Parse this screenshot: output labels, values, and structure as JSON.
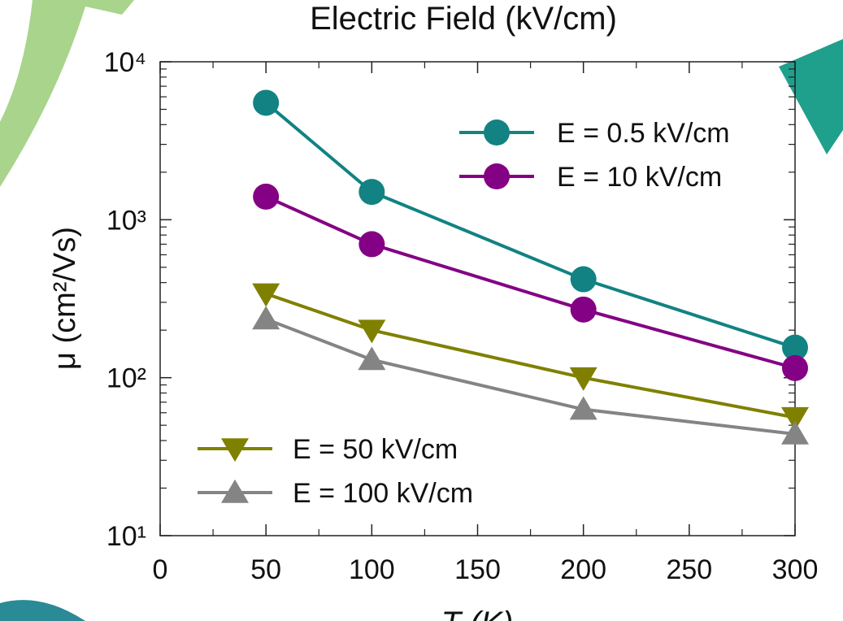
{
  "chart_data": {
    "type": "line",
    "title": "Electric Field (kV/cm)",
    "x_label": "T (K)",
    "y_label": "μ (cm²/Vs)",
    "y_scale": "log",
    "xlim": [
      0,
      300
    ],
    "xticks": [
      0,
      50,
      100,
      150,
      200,
      250,
      300
    ],
    "ylim": [
      10,
      10000
    ],
    "yticks": [
      {
        "value": 10,
        "label": "10¹"
      },
      {
        "value": 100,
        "label": "10²"
      },
      {
        "value": 1000,
        "label": "10³"
      },
      {
        "value": 10000,
        "label": "10⁴"
      }
    ],
    "x": [
      50,
      100,
      200,
      300
    ],
    "series": [
      {
        "name": "E = 0.5 kV/cm",
        "color": "#128282",
        "marker": "circle",
        "legend": "upper right",
        "values": [
          5500,
          1500,
          420,
          155
        ]
      },
      {
        "name": "E = 10 kV/cm",
        "color": "#840084",
        "marker": "circle",
        "legend": "upper right",
        "values": [
          1400,
          700,
          270,
          115
        ]
      },
      {
        "name": "E = 50 kV/cm",
        "color": "#808000",
        "marker": "triangle-down",
        "legend": "lower left",
        "values": [
          340,
          200,
          100,
          56
        ]
      },
      {
        "name": "E = 100 kV/cm",
        "color": "#848484",
        "marker": "triangle-up",
        "legend": "lower left",
        "values": [
          235,
          130,
          63,
          44
        ]
      }
    ]
  }
}
